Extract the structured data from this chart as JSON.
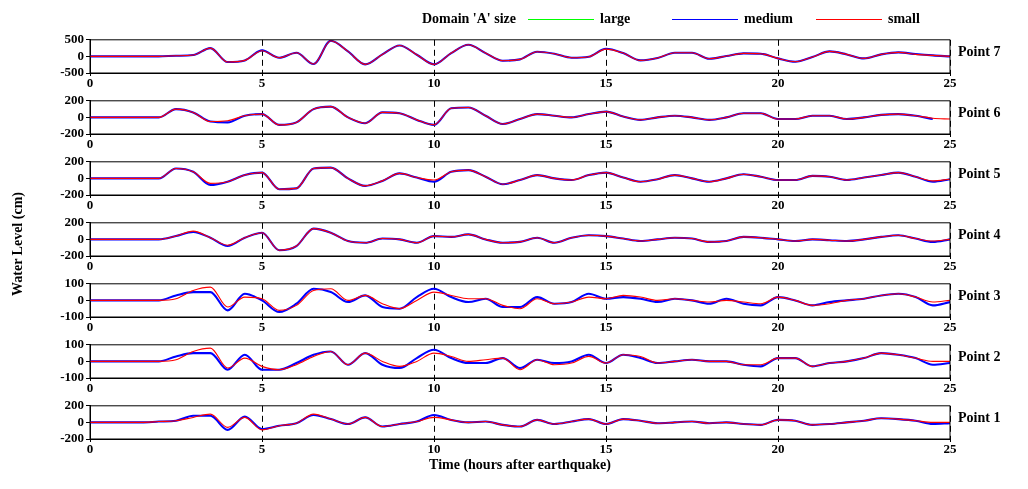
{
  "chart_data": [
    {
      "type": "line",
      "title": "Point 7",
      "legend": "top right",
      "legend_title": "Domain 'A' size",
      "xlim": [
        0,
        25
      ],
      "xticks": [
        0,
        5,
        10,
        15,
        20,
        25
      ],
      "ylim": [
        -500,
        500
      ],
      "yticks": [
        -500,
        0,
        500
      ],
      "grid": "x",
      "marker": "none",
      "line_style": "solid",
      "x": [
        0,
        0.5,
        1,
        1.5,
        2,
        2.5,
        3,
        3.5,
        4,
        4.5,
        5,
        5.5,
        6,
        6.5,
        7,
        7.5,
        8,
        8.5,
        9,
        9.5,
        10,
        10.5,
        11,
        11.5,
        12,
        12.5,
        13,
        13.5,
        14,
        14.5,
        15,
        15.5,
        16,
        16.5,
        17,
        17.5,
        18,
        18.5,
        19,
        19.5,
        20,
        20.5,
        21,
        21.5,
        22,
        22.5,
        23,
        23.5,
        24,
        24.5,
        25
      ],
      "series": [
        {
          "name": "large",
          "color": "#00ff00",
          "values": [
            null,
            null,
            null,
            null,
            null,
            null,
            null,
            null,
            null,
            null,
            null,
            null,
            null,
            null,
            null,
            null,
            null,
            null,
            null,
            null,
            null,
            null,
            null,
            null,
            null,
            null,
            null,
            null,
            null,
            null,
            null,
            null,
            null,
            null,
            null,
            null,
            null,
            null,
            null,
            null,
            null,
            null,
            null,
            null,
            null,
            null,
            null,
            null,
            null,
            null,
            null
          ]
        },
        {
          "name": "medium",
          "color": "#0000ff",
          "values": [
            0,
            0,
            0,
            0,
            0,
            20,
            40,
            250,
            -170,
            -120,
            180,
            -40,
            110,
            -230,
            470,
            150,
            -240,
            60,
            330,
            50,
            -240,
            100,
            350,
            100,
            -130,
            -90,
            140,
            80,
            -40,
            -10,
            230,
            100,
            -120,
            -50,
            110,
            110,
            -70,
            10,
            90,
            80,
            -60,
            -160,
            -20,
            150,
            60,
            -60,
            60,
            120,
            70,
            30,
            0
          ]
        },
        {
          "name": "small",
          "color": "#ff0000",
          "values": [
            0,
            0,
            0,
            0,
            0,
            20,
            40,
            250,
            -170,
            -120,
            170,
            -40,
            110,
            -230,
            470,
            150,
            -240,
            60,
            330,
            50,
            -240,
            100,
            350,
            100,
            -130,
            -90,
            140,
            80,
            -40,
            -10,
            220,
            100,
            -120,
            -50,
            110,
            110,
            -70,
            10,
            90,
            80,
            -60,
            -160,
            -20,
            150,
            60,
            -60,
            60,
            120,
            60,
            30,
            0
          ]
        }
      ]
    },
    {
      "type": "line",
      "title": "Point 6",
      "xlim": [
        0,
        25
      ],
      "xticks": [
        0,
        5,
        10,
        15,
        20,
        25
      ],
      "ylim": [
        -200,
        200
      ],
      "yticks": [
        -200,
        0,
        200
      ],
      "grid": "x",
      "marker": "none",
      "line_style": "solid",
      "x": [
        0,
        0.5,
        1,
        1.5,
        2,
        2.5,
        3,
        3.5,
        4,
        4.5,
        5,
        5.5,
        6,
        6.5,
        7,
        7.5,
        8,
        8.5,
        9,
        9.5,
        10,
        10.5,
        11,
        11.5,
        12,
        12.5,
        13,
        13.5,
        14,
        14.5,
        15,
        15.5,
        16,
        16.5,
        17,
        17.5,
        18,
        18.5,
        19,
        19.5,
        20,
        20.5,
        21,
        21.5,
        22,
        22.5,
        23,
        23.5,
        24,
        24.5,
        25
      ],
      "series": [
        {
          "color": "#0000ff",
          "values": [
            0,
            0,
            0,
            0,
            0,
            100,
            60,
            -50,
            -60,
            20,
            40,
            -90,
            -60,
            100,
            130,
            0,
            -70,
            60,
            50,
            -30,
            -90,
            110,
            120,
            20,
            -80,
            -20,
            40,
            20,
            0,
            40,
            70,
            10,
            -30,
            0,
            20,
            0,
            -30,
            0,
            50,
            50,
            -20,
            -20,
            20,
            20,
            -20,
            0,
            30,
            40,
            20,
            -20,
            null
          ]
        },
        {
          "color": "#ff0000",
          "values": [
            0,
            0,
            0,
            0,
            0,
            100,
            60,
            -50,
            -40,
            20,
            40,
            -90,
            -60,
            100,
            130,
            0,
            -70,
            60,
            50,
            -30,
            -90,
            110,
            120,
            20,
            -80,
            -20,
            40,
            20,
            0,
            40,
            70,
            10,
            -30,
            0,
            20,
            0,
            -30,
            0,
            50,
            50,
            -20,
            -20,
            20,
            20,
            -20,
            0,
            30,
            40,
            20,
            -10,
            -20
          ]
        }
      ]
    },
    {
      "type": "line",
      "title": "Point 5",
      "xlim": [
        0,
        25
      ],
      "xticks": [
        0,
        5,
        10,
        15,
        20,
        25
      ],
      "ylim": [
        -200,
        200
      ],
      "yticks": [
        -200,
        0,
        200
      ],
      "grid": "x",
      "marker": "none",
      "line_style": "solid",
      "x": [
        0,
        0.5,
        1,
        1.5,
        2,
        2.5,
        3,
        3.5,
        4,
        4.5,
        5,
        5.5,
        6,
        6.5,
        7,
        7.5,
        8,
        8.5,
        9,
        9.5,
        10,
        10.5,
        11,
        11.5,
        12,
        12.5,
        13,
        13.5,
        14,
        14.5,
        15,
        15.5,
        16,
        16.5,
        17,
        17.5,
        18,
        18.5,
        19,
        19.5,
        20,
        20.5,
        21,
        21.5,
        22,
        22.5,
        23,
        23.5,
        24,
        24.5,
        25
      ],
      "series": [
        {
          "color": "#0000ff",
          "values": [
            0,
            0,
            0,
            0,
            0,
            120,
            80,
            -80,
            -40,
            40,
            70,
            -130,
            -120,
            120,
            130,
            0,
            -90,
            -30,
            60,
            10,
            -40,
            80,
            100,
            20,
            -70,
            -20,
            40,
            0,
            -20,
            40,
            70,
            10,
            -40,
            -10,
            40,
            0,
            -40,
            0,
            50,
            20,
            -20,
            -20,
            30,
            20,
            -20,
            10,
            40,
            70,
            20,
            -40,
            -10
          ]
        },
        {
          "color": "#ff0000",
          "values": [
            0,
            0,
            0,
            0,
            0,
            120,
            80,
            -60,
            -40,
            40,
            70,
            -130,
            -120,
            120,
            130,
            0,
            -90,
            -30,
            60,
            10,
            -20,
            80,
            100,
            20,
            -70,
            -20,
            40,
            0,
            -20,
            40,
            70,
            10,
            -40,
            -10,
            40,
            0,
            -40,
            0,
            50,
            20,
            -20,
            -20,
            30,
            20,
            -20,
            10,
            40,
            70,
            20,
            -30,
            -10
          ]
        }
      ]
    },
    {
      "type": "line",
      "title": "Point 4",
      "ylabel": "Water Level (cm)",
      "xlim": [
        0,
        25
      ],
      "xticks": [
        0,
        5,
        10,
        15,
        20,
        25
      ],
      "ylim": [
        -200,
        200
      ],
      "yticks": [
        -200,
        0,
        200
      ],
      "grid": "x",
      "marker": "none",
      "line_style": "solid",
      "x": [
        0,
        0.5,
        1,
        1.5,
        2,
        2.5,
        3,
        3.5,
        4,
        4.5,
        5,
        5.5,
        6,
        6.5,
        7,
        7.5,
        8,
        8.5,
        9,
        9.5,
        10,
        10.5,
        11,
        11.5,
        12,
        12.5,
        13,
        13.5,
        14,
        14.5,
        15,
        15.5,
        16,
        16.5,
        17,
        17.5,
        18,
        18.5,
        19,
        19.5,
        20,
        20.5,
        21,
        21.5,
        22,
        22.5,
        23,
        23.5,
        24,
        24.5,
        25
      ],
      "series": [
        {
          "color": "#0000ff",
          "values": [
            0,
            0,
            0,
            0,
            0,
            40,
            90,
            20,
            -80,
            20,
            80,
            -130,
            -80,
            130,
            80,
            -20,
            -40,
            10,
            0,
            -40,
            40,
            30,
            60,
            0,
            -40,
            -30,
            20,
            -40,
            20,
            50,
            40,
            10,
            -20,
            0,
            20,
            10,
            -30,
            -20,
            30,
            20,
            0,
            -20,
            0,
            -10,
            -20,
            0,
            30,
            50,
            10,
            -30,
            0
          ]
        },
        {
          "color": "#ff0000",
          "values": [
            0,
            0,
            0,
            0,
            0,
            40,
            100,
            20,
            -70,
            20,
            80,
            -130,
            -80,
            130,
            80,
            -20,
            -40,
            10,
            0,
            -40,
            40,
            30,
            60,
            0,
            -40,
            -30,
            20,
            -40,
            20,
            50,
            40,
            10,
            -20,
            0,
            20,
            10,
            -30,
            -20,
            30,
            20,
            0,
            -20,
            0,
            -10,
            -20,
            0,
            30,
            50,
            10,
            -20,
            0
          ]
        }
      ]
    },
    {
      "type": "line",
      "title": "Point 3",
      "xlim": [
        0,
        25
      ],
      "xticks": [
        0,
        5,
        10,
        15,
        20,
        25
      ],
      "ylim": [
        -100,
        100
      ],
      "yticks": [
        -100,
        0,
        100
      ],
      "grid": "x",
      "marker": "none",
      "line_style": "solid",
      "x": [
        0,
        0.5,
        1,
        1.5,
        2,
        2.5,
        3,
        3.5,
        4,
        4.5,
        5,
        5.5,
        6,
        6.5,
        7,
        7.5,
        8,
        8.5,
        9,
        9.5,
        10,
        10.5,
        11,
        11.5,
        12,
        12.5,
        13,
        13.5,
        14,
        14.5,
        15,
        15.5,
        16,
        16.5,
        17,
        17.5,
        18,
        18.5,
        19,
        19.5,
        20,
        20.5,
        21,
        21.5,
        22,
        22.5,
        23,
        23.5,
        24,
        24.5,
        25
      ],
      "series": [
        {
          "color": "#0000ff",
          "values": [
            0,
            0,
            0,
            0,
            0,
            30,
            50,
            50,
            -60,
            40,
            0,
            -70,
            -20,
            70,
            50,
            -10,
            30,
            -40,
            -50,
            20,
            70,
            20,
            -10,
            10,
            -40,
            -40,
            20,
            -20,
            -10,
            40,
            10,
            20,
            10,
            -10,
            10,
            0,
            -20,
            10,
            -20,
            -30,
            20,
            0,
            -30,
            -10,
            0,
            10,
            30,
            40,
            20,
            -30,
            -10
          ]
        },
        {
          "color": "#ff0000",
          "values": [
            0,
            0,
            0,
            0,
            0,
            10,
            60,
            80,
            -40,
            20,
            10,
            -60,
            -30,
            60,
            70,
            0,
            30,
            -20,
            -50,
            0,
            50,
            30,
            10,
            10,
            -30,
            -50,
            10,
            -20,
            -10,
            20,
            10,
            30,
            20,
            0,
            10,
            0,
            -10,
            0,
            -10,
            -20,
            20,
            0,
            -30,
            -20,
            0,
            10,
            30,
            40,
            20,
            -10,
            0
          ]
        }
      ]
    },
    {
      "type": "line",
      "title": "Point 2",
      "xlim": [
        0,
        25
      ],
      "xticks": [
        0,
        5,
        10,
        15,
        20,
        25
      ],
      "ylim": [
        -100,
        100
      ],
      "yticks": [
        -100,
        0,
        100
      ],
      "grid": "x",
      "marker": "none",
      "line_style": "solid",
      "x": [
        0,
        0.5,
        1,
        1.5,
        2,
        2.5,
        3,
        3.5,
        4,
        4.5,
        5,
        5.5,
        6,
        6.5,
        7,
        7.5,
        8,
        8.5,
        9,
        9.5,
        10,
        10.5,
        11,
        11.5,
        12,
        12.5,
        13,
        13.5,
        14,
        14.5,
        15,
        15.5,
        16,
        16.5,
        17,
        17.5,
        18,
        18.5,
        19,
        19.5,
        20,
        20.5,
        21,
        21.5,
        22,
        22.5,
        23,
        23.5,
        24,
        24.5,
        25
      ],
      "series": [
        {
          "color": "#0000ff",
          "values": [
            0,
            0,
            0,
            0,
            0,
            30,
            50,
            50,
            -50,
            40,
            -50,
            -50,
            -10,
            40,
            60,
            -20,
            50,
            -20,
            -40,
            20,
            70,
            20,
            -10,
            -10,
            20,
            -40,
            10,
            -10,
            0,
            40,
            -10,
            40,
            20,
            -10,
            0,
            10,
            0,
            0,
            -20,
            -30,
            20,
            20,
            -30,
            -10,
            0,
            20,
            50,
            40,
            20,
            -20,
            -10
          ]
        },
        {
          "color": "#ff0000",
          "values": [
            0,
            0,
            0,
            0,
            0,
            10,
            60,
            80,
            -40,
            20,
            -30,
            -50,
            -20,
            30,
            60,
            -20,
            50,
            0,
            -30,
            0,
            50,
            30,
            0,
            10,
            20,
            -50,
            10,
            -20,
            -10,
            30,
            -10,
            40,
            30,
            -10,
            0,
            10,
            0,
            0,
            -20,
            -20,
            20,
            20,
            -30,
            -10,
            0,
            20,
            50,
            40,
            20,
            0,
            0
          ]
        }
      ]
    },
    {
      "type": "line",
      "title": "Point 1",
      "xlabel": "Time (hours after earthquake)",
      "xlim": [
        0,
        25
      ],
      "xticks": [
        0,
        5,
        10,
        15,
        20,
        25
      ],
      "ylim": [
        -200,
        200
      ],
      "yticks": [
        -200,
        0,
        200
      ],
      "grid": "x",
      "marker": "none",
      "line_style": "solid",
      "x": [
        0,
        0.5,
        1,
        1.5,
        2,
        2.5,
        3,
        3.5,
        4,
        4.5,
        5,
        5.5,
        6,
        6.5,
        7,
        7.5,
        8,
        8.5,
        9,
        9.5,
        10,
        10.5,
        11,
        11.5,
        12,
        12.5,
        13,
        13.5,
        14,
        14.5,
        15,
        15.5,
        16,
        16.5,
        17,
        17.5,
        18,
        18.5,
        19,
        19.5,
        20,
        20.5,
        21,
        21.5,
        22,
        22.5,
        23,
        23.5,
        24,
        24.5,
        25
      ],
      "series": [
        {
          "color": "#0000ff",
          "values": [
            0,
            0,
            0,
            0,
            10,
            20,
            80,
            80,
            -90,
            70,
            -80,
            -40,
            -10,
            90,
            40,
            -20,
            60,
            -50,
            -20,
            10,
            90,
            30,
            0,
            10,
            -30,
            -50,
            30,
            -20,
            10,
            40,
            -20,
            40,
            20,
            -10,
            0,
            10,
            -10,
            0,
            -20,
            -30,
            30,
            20,
            -30,
            -20,
            0,
            20,
            50,
            40,
            20,
            -20,
            -10
          ]
        },
        {
          "color": "#ff0000",
          "values": [
            0,
            0,
            0,
            0,
            10,
            20,
            60,
            100,
            -60,
            60,
            -90,
            -40,
            -10,
            100,
            40,
            -20,
            60,
            -50,
            -20,
            10,
            60,
            30,
            0,
            10,
            -30,
            -50,
            30,
            -20,
            10,
            40,
            -20,
            40,
            20,
            -10,
            0,
            10,
            -10,
            0,
            -20,
            -30,
            30,
            20,
            -30,
            -20,
            0,
            20,
            50,
            40,
            20,
            0,
            0
          ]
        }
      ]
    }
  ]
}
